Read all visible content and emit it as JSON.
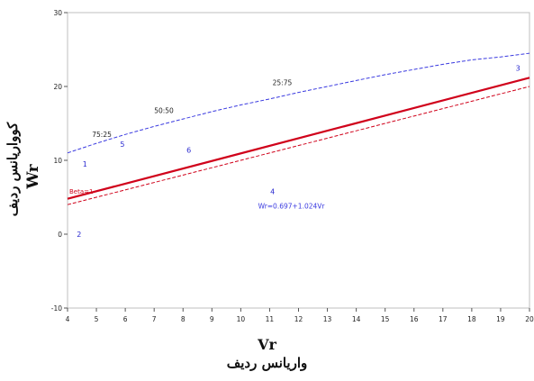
{
  "chart_data": {
    "type": "scatter",
    "xlabel": "Vr",
    "xlabel_fa": "واریانس ردیف",
    "ylabel": "Wr",
    "ylabel_fa": "کوواریانس ردیف",
    "xlim": [
      4,
      20
    ],
    "ylim": [
      -10,
      30
    ],
    "xticks": [
      "4",
      "5",
      "6",
      "7",
      "8",
      "9",
      "10",
      "11",
      "12",
      "13",
      "14",
      "15",
      "16",
      "17",
      "18",
      "19",
      "20"
    ],
    "yticks": [
      "-10",
      "0",
      "10",
      "20",
      "30"
    ],
    "points": [
      {
        "label": "1",
        "x": 4.6,
        "y": 9.5
      },
      {
        "label": "2",
        "x": 4.4,
        "y": 0.0
      },
      {
        "label": "3",
        "x": 19.6,
        "y": 22.5
      },
      {
        "label": "4",
        "x": 11.1,
        "y": 5.8
      },
      {
        "label": "5",
        "x": 5.9,
        "y": 12.2
      },
      {
        "label": "6",
        "x": 8.2,
        "y": 11.4
      }
    ],
    "regression": {
      "label": "Wr=0.697+1.024Vr",
      "x_from": 4,
      "x_to": 20,
      "intercept": 0.697,
      "slope": 1.024,
      "color": "#d0021b"
    },
    "limiting_line": {
      "label": "Beta=1",
      "x_from": 4,
      "x_to": 20,
      "y_from": 4.0,
      "y_to": 20.0,
      "color": "#d0021b"
    },
    "parabola": {
      "color": "#3a3ae0",
      "points": [
        [
          4,
          11.0
        ],
        [
          5,
          12.3
        ],
        [
          6,
          13.5
        ],
        [
          7,
          14.6
        ],
        [
          8,
          15.6
        ],
        [
          9,
          16.6
        ],
        [
          10,
          17.5
        ],
        [
          11,
          18.3
        ],
        [
          12,
          19.2
        ],
        [
          13,
          20.0
        ],
        [
          14,
          20.8
        ],
        [
          15,
          21.6
        ],
        [
          16,
          22.3
        ],
        [
          17,
          23.0
        ],
        [
          18,
          23.6
        ],
        [
          19,
          24.0
        ],
        [
          20,
          24.5
        ]
      ],
      "labels": [
        {
          "text": "75:25",
          "x": 4.85,
          "y": 13.2
        },
        {
          "text": "50:50",
          "x": 7.0,
          "y": 16.4
        },
        {
          "text": "25:75",
          "x": 11.1,
          "y": 20.2
        }
      ]
    },
    "grid": false
  }
}
